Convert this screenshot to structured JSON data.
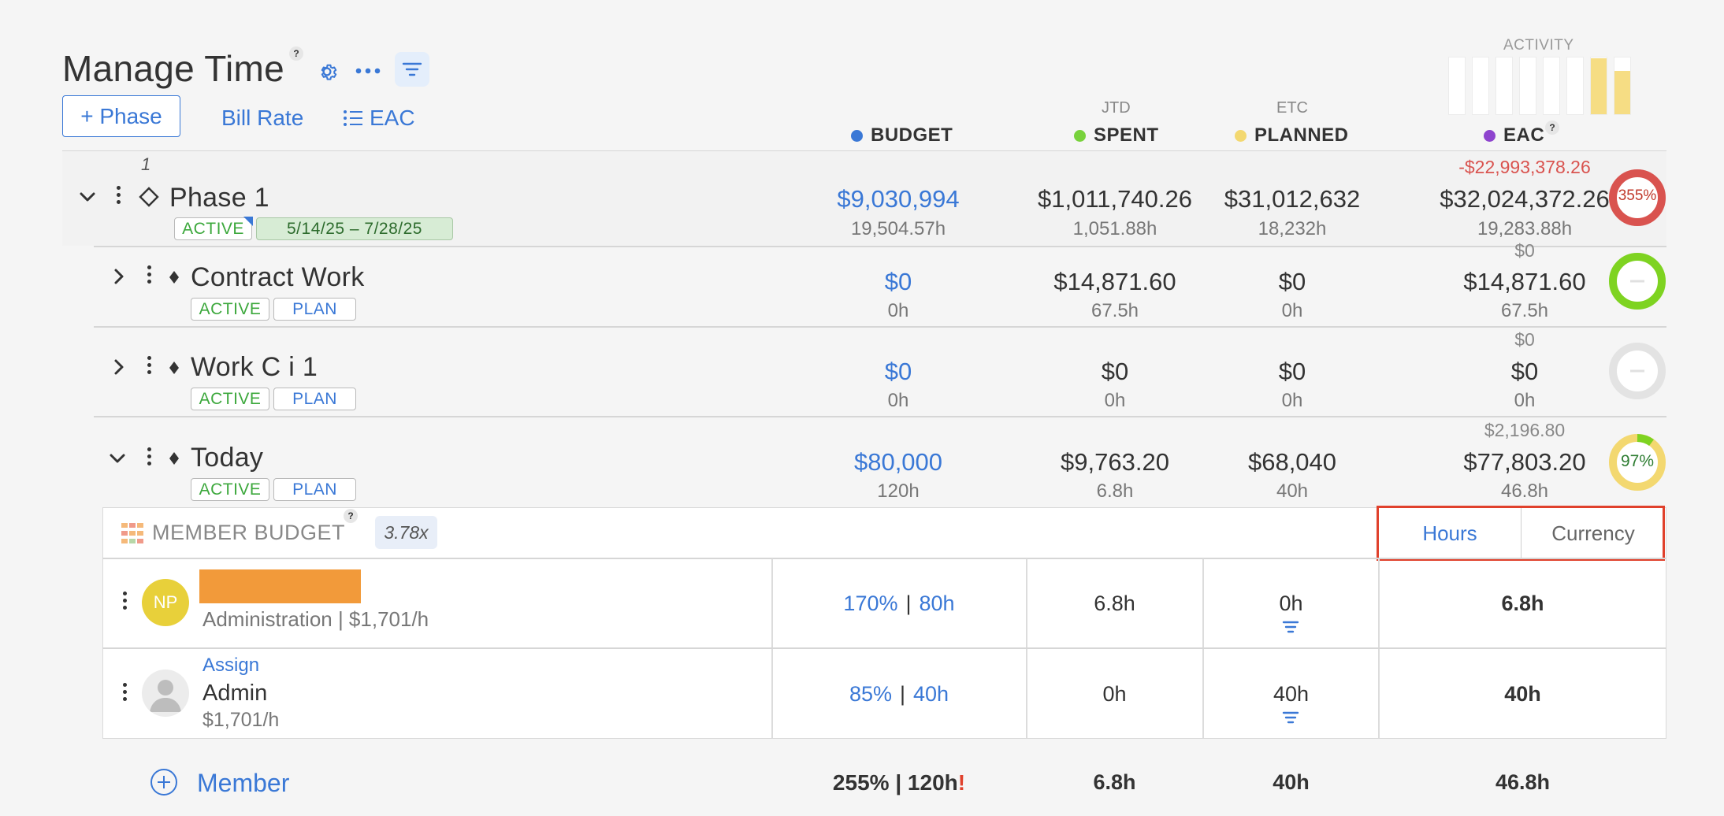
{
  "header": {
    "title": "Manage Time",
    "help": "?",
    "add_phase_label": "+ Phase",
    "bill_rate_label": "Bill Rate",
    "eac_label": "EAC"
  },
  "activity": {
    "label": "ACTIVITY",
    "bars": [
      0,
      0,
      0,
      0,
      0,
      0,
      1.0,
      0.78
    ]
  },
  "columns": {
    "budget": "BUDGET",
    "spent_super": "JTD",
    "spent": "SPENT",
    "planned_super": "ETC",
    "planned": "PLANNED",
    "eac": "EAC",
    "eac_help": "?"
  },
  "colors": {
    "budget": "#3a78d6",
    "spent": "#78d23c",
    "planned": "#f3d870",
    "eac": "#8e44ce",
    "link": "#3a78d6",
    "danger": "#d9534f"
  },
  "phase": {
    "index": "1",
    "name": "Phase 1",
    "status": "ACTIVE",
    "dates": "5/14/25  –  7/28/25",
    "budget": "$9,030,994",
    "budget_hours": "19,504.57h",
    "spent": "$1,011,740.26",
    "spent_hours": "1,051.88h",
    "planned": "$31,012,632",
    "planned_hours": "18,232h",
    "eac_diff": "-$22,993,378.26",
    "eac": "$32,024,372.26",
    "eac_hours": "19,283.88h",
    "progress": "355%"
  },
  "work_categories": [
    {
      "name": "Contract Work",
      "status": "ACTIVE",
      "plan": "PLAN",
      "budget": "$0",
      "budget_hours": "0h",
      "spent": "$14,871.60",
      "spent_hours": "67.5h",
      "planned": "$0",
      "planned_hours": "0h",
      "eac_diff": "$0",
      "eac": "$14,871.60",
      "eac_hours": "67.5h"
    },
    {
      "name": "Work C i 1",
      "status": "ACTIVE",
      "plan": "PLAN",
      "budget": "$0",
      "budget_hours": "0h",
      "spent": "$0",
      "spent_hours": "0h",
      "planned": "$0",
      "planned_hours": "0h",
      "eac_diff": "$0",
      "eac": "$0",
      "eac_hours": "0h"
    },
    {
      "name": "Today",
      "status": "ACTIVE",
      "plan": "PLAN",
      "budget": "$80,000",
      "budget_hours": "120h",
      "spent": "$9,763.20",
      "spent_hours": "6.8h",
      "planned": "$68,040",
      "planned_hours": "40h",
      "eac_diff": "$2,196.80",
      "eac": "$77,803.20",
      "eac_hours": "46.8h",
      "progress": "97%"
    }
  ],
  "member_budget": {
    "label": "MEMBER BUDGET",
    "help": "?",
    "multiplier": "3.78x",
    "toggle_hours": "Hours",
    "toggle_currency": "Currency",
    "members": [
      {
        "initials": "NP",
        "name_redacted": "",
        "role": "Administration | $1,701/h",
        "pct": "170%",
        "sep": "|",
        "hours": "80h",
        "spent": "6.8h",
        "planned": "0h",
        "eac": "6.8h"
      },
      {
        "assign": "Assign",
        "name": "Admin",
        "rate": "$1,701/h",
        "pct": "85%",
        "sep": "|",
        "hours": "40h",
        "spent": "0h",
        "planned": "40h",
        "eac": "40h"
      }
    ],
    "add_member": "Member",
    "totals": {
      "pct_hours": "255% | 120h",
      "warn": "!",
      "spent": "6.8h",
      "planned": "40h",
      "eac": "46.8h"
    }
  }
}
